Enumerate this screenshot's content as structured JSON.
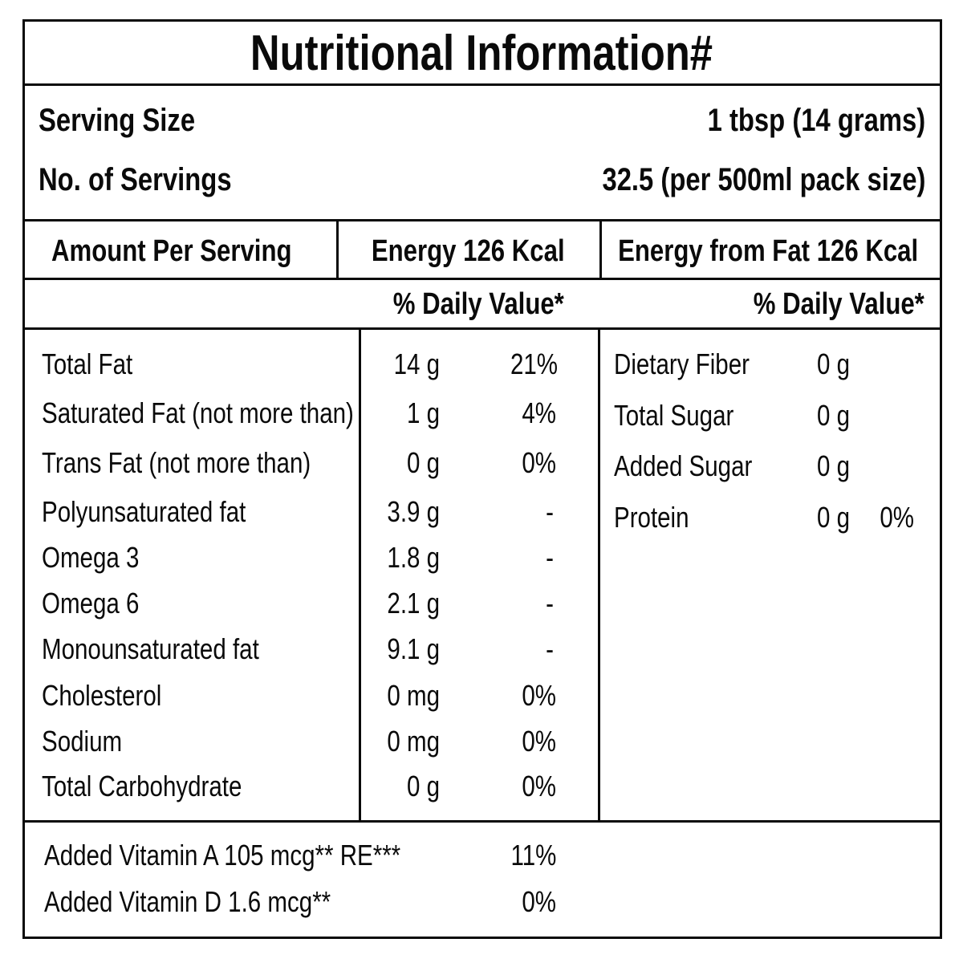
{
  "title": "Nutritional Information#",
  "serving": {
    "size_label": "Serving Size",
    "size_value": "1 tbsp (14 grams)",
    "count_label": "No. of Servings",
    "count_value": "32.5 (per 500ml pack size)"
  },
  "energy": {
    "amount_label": "Amount Per Serving",
    "energy": "Energy  126 Kcal",
    "energy_from_fat": "Energy from Fat 126 Kcal"
  },
  "daily_value_header_left": "% Daily Value*",
  "daily_value_header_right": "% Daily Value*",
  "left_nutrients": [
    {
      "name": "Total Fat",
      "amount": "14 g",
      "dv": "21%"
    },
    {
      "name": "Saturated Fat (not more than)",
      "amount": "1 g",
      "dv": "4%"
    },
    {
      "name": "Trans Fat (not more than)",
      "amount": "0 g",
      "dv": "0%"
    },
    {
      "name": "Polyunsaturated fat",
      "amount": "3.9 g",
      "dv": "-"
    },
    {
      "name": "Omega 3",
      "amount": "1.8 g",
      "dv": "-"
    },
    {
      "name": "Omega 6",
      "amount": "2.1 g",
      "dv": "-"
    },
    {
      "name": "Monounsaturated fat",
      "amount": "9.1 g",
      "dv": "-"
    },
    {
      "name": "Cholesterol",
      "amount": "0 mg",
      "dv": "0%"
    },
    {
      "name": "Sodium",
      "amount": "0 mg",
      "dv": "0%"
    },
    {
      "name": "Total Carbohydrate",
      "amount": "0 g",
      "dv": "0%"
    }
  ],
  "right_nutrients": [
    {
      "name": "Dietary Fiber",
      "amount": "0 g",
      "dv": ""
    },
    {
      "name": "Total Sugar",
      "amount": "0 g",
      "dv": ""
    },
    {
      "name": "Added Sugar",
      "amount": "0 g",
      "dv": ""
    },
    {
      "name": "Protein",
      "amount": "0 g",
      "dv": "0%"
    }
  ],
  "vitamins": [
    {
      "name": "Added Vitamin A 105 mcg** RE***",
      "dv": "11%"
    },
    {
      "name": "Added Vitamin D 1.6 mcg**",
      "dv": "0%"
    }
  ]
}
